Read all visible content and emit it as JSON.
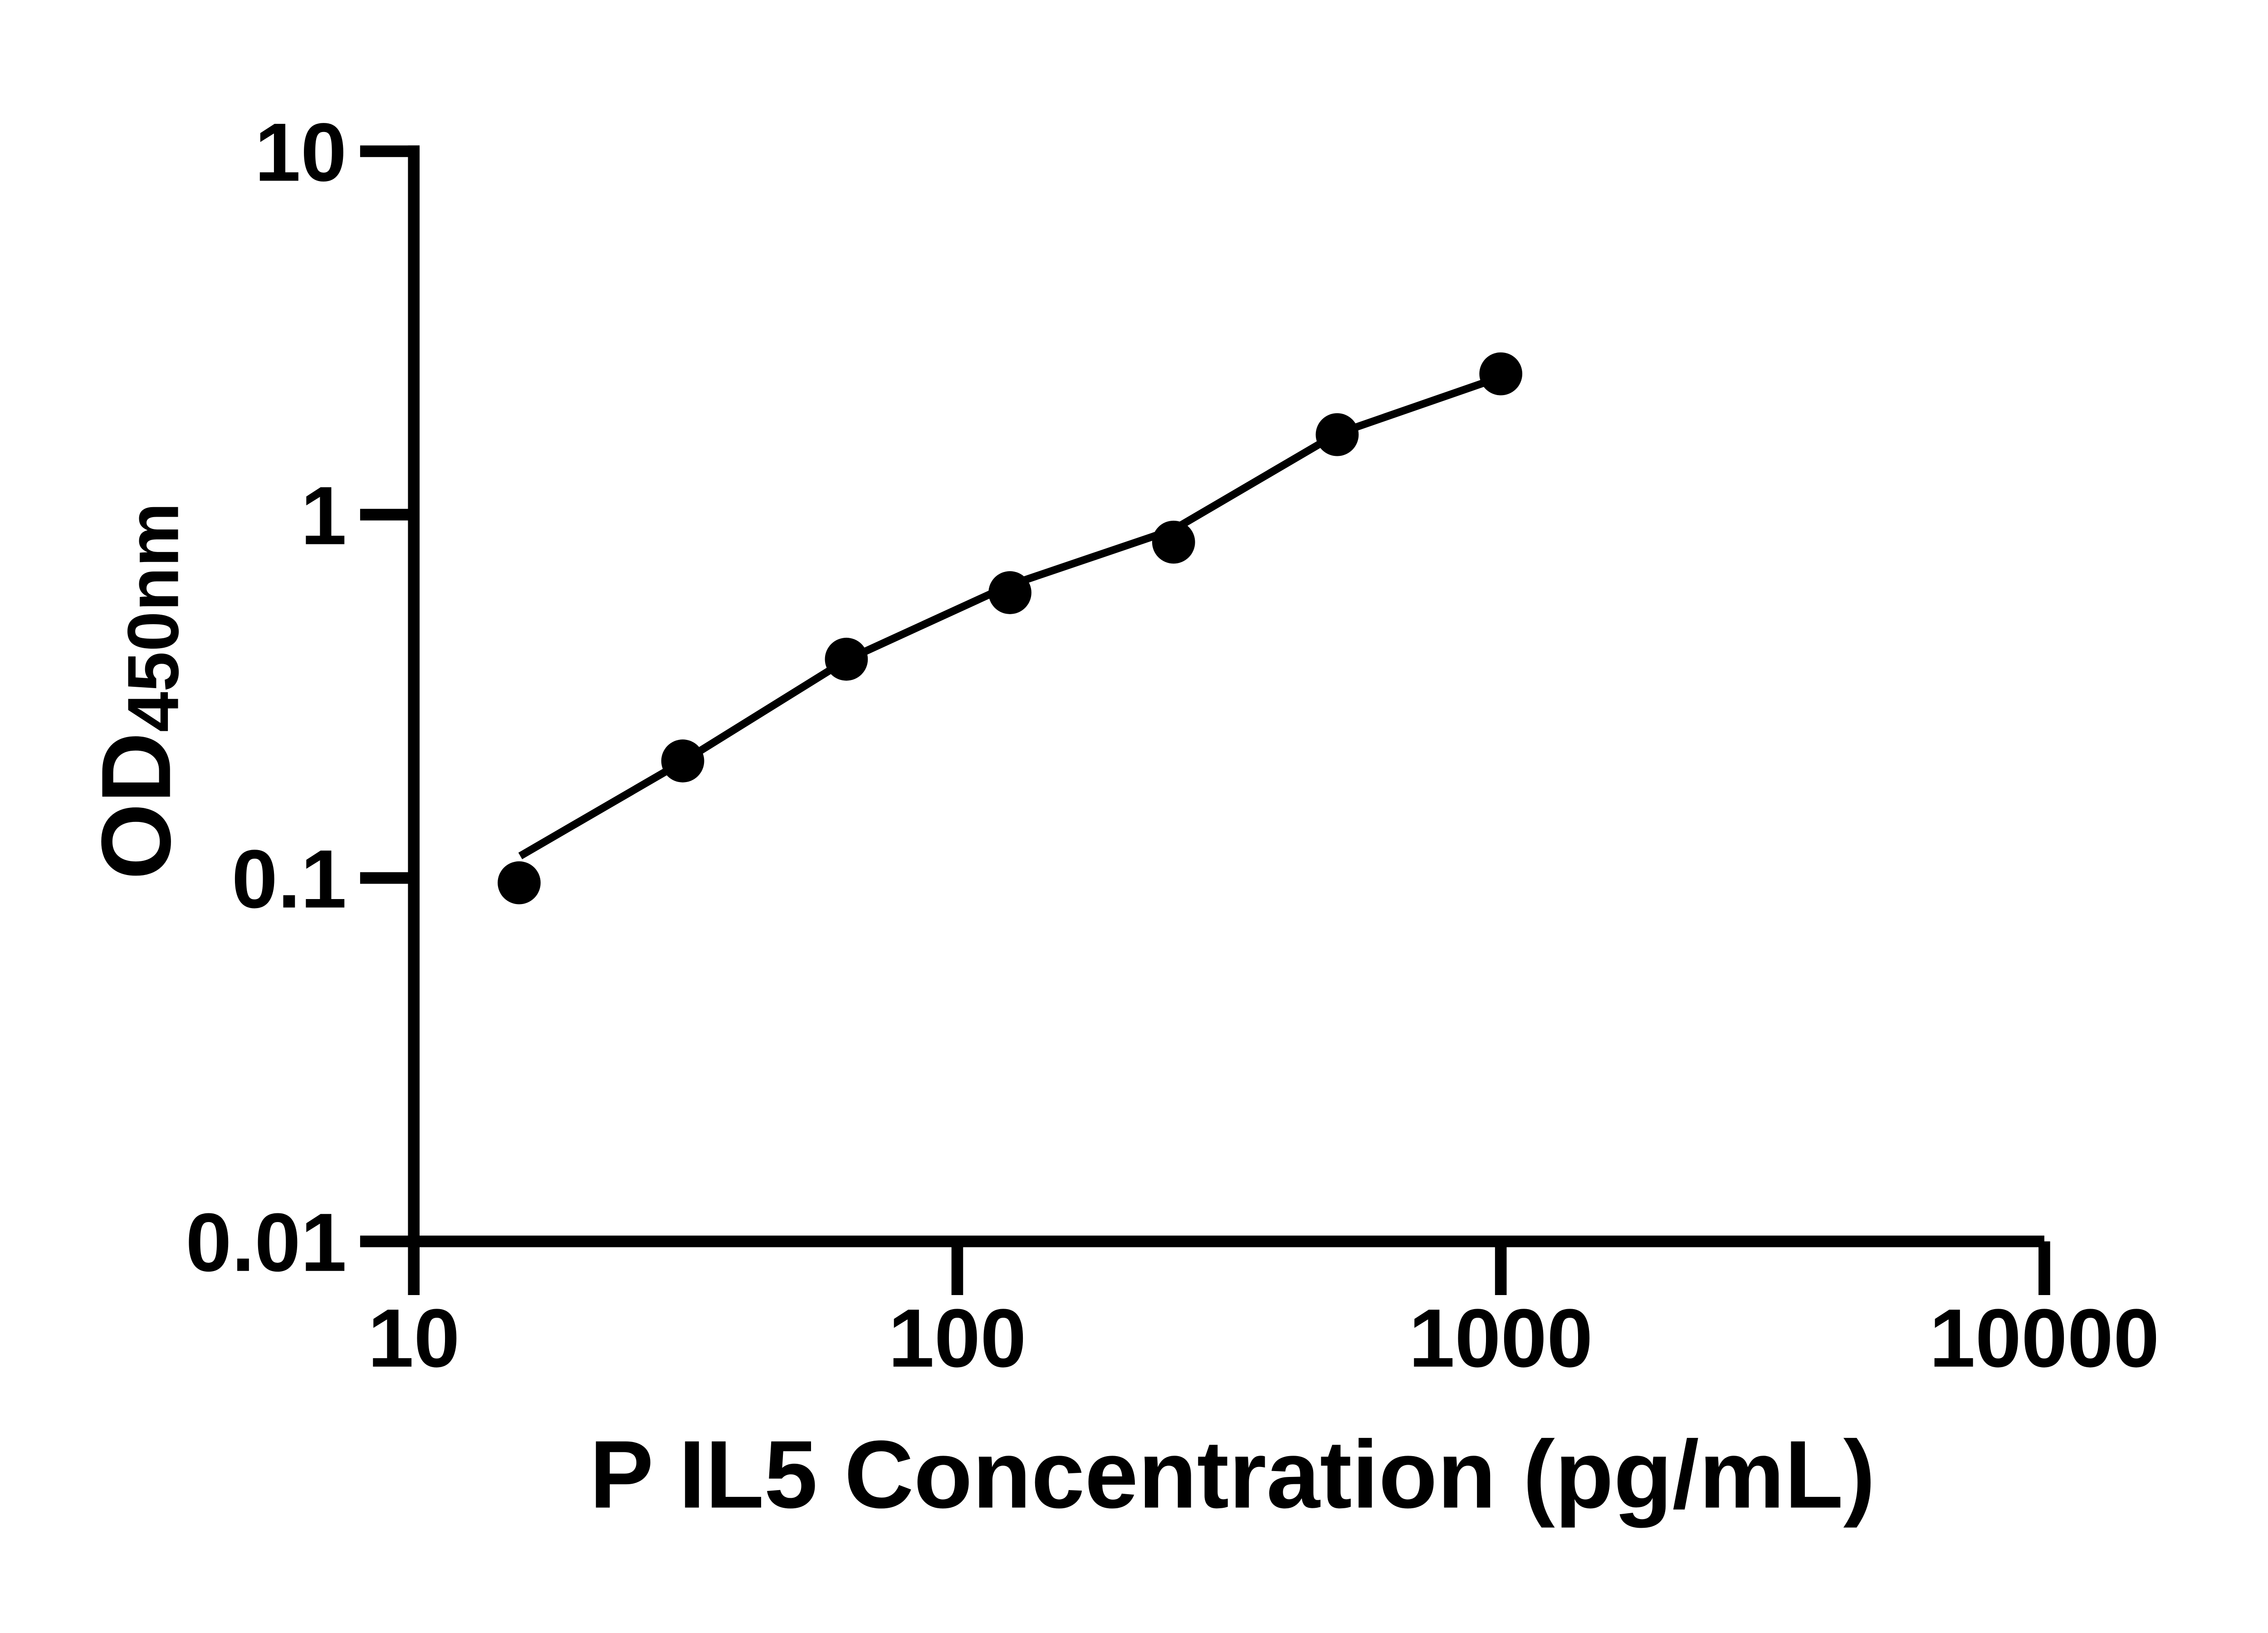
{
  "figure": {
    "background_color": "#ffffff",
    "foreground_color": "#000000"
  },
  "chart_data": {
    "type": "scatter",
    "title": "",
    "xlabel": "P IL5 Concentration (pg/mL)",
    "ylabel_main": "OD",
    "ylabel_sub": "450nm",
    "x_scale": "log",
    "y_scale": "log",
    "xlim": [
      10,
      10000
    ],
    "ylim": [
      0.01,
      10
    ],
    "grid": false,
    "legend": "none",
    "x_ticks": [
      {
        "value": 10,
        "label": "10"
      },
      {
        "value": 100,
        "label": "100"
      },
      {
        "value": 1000,
        "label": "1000"
      },
      {
        "value": 10000,
        "label": "10000"
      }
    ],
    "y_ticks": [
      {
        "value": 10,
        "label": "10"
      },
      {
        "value": 1,
        "label": "1"
      },
      {
        "value": 0.1,
        "label": "0.1"
      },
      {
        "value": 0.01,
        "label": "0.01"
      }
    ],
    "series": [
      {
        "name": "standard-curve-points",
        "marker": "filled-circle",
        "color": "#000000",
        "points": [
          {
            "x": 15.625,
            "y": 0.097
          },
          {
            "x": 31.25,
            "y": 0.21
          },
          {
            "x": 62.5,
            "y": 0.4
          },
          {
            "x": 125,
            "y": 0.61
          },
          {
            "x": 250,
            "y": 0.84
          },
          {
            "x": 500,
            "y": 1.66
          },
          {
            "x": 1000,
            "y": 2.44
          }
        ]
      }
    ],
    "fit_line": {
      "name": "standard-curve-fit",
      "color": "#000000",
      "points": [
        {
          "x": 15.7,
          "y": 0.115
        },
        {
          "x": 31.25,
          "y": 0.209
        },
        {
          "x": 62.5,
          "y": 0.398
        },
        {
          "x": 125,
          "y": 0.64
        },
        {
          "x": 250,
          "y": 0.91
        },
        {
          "x": 500,
          "y": 1.67
        },
        {
          "x": 990,
          "y": 2.38
        }
      ]
    }
  }
}
